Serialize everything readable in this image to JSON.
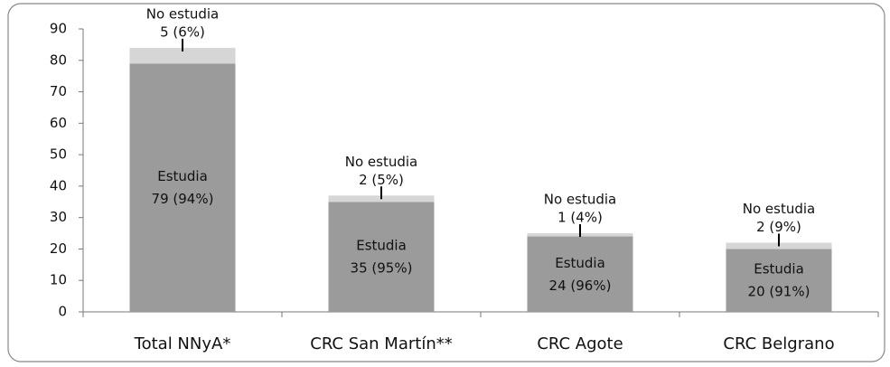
{
  "chart_data": {
    "type": "bar",
    "stacked": true,
    "categories": [
      "Total NNyA*",
      "CRC San Martín**",
      "CRC Agote",
      "CRC Belgrano"
    ],
    "series": [
      {
        "name": "Estudia",
        "color": "#9b9b9b",
        "values": [
          79,
          35,
          24,
          20
        ],
        "value_labels": [
          "79 (94%)",
          "35 (95%)",
          "24 (96%)",
          "20 (91%)"
        ]
      },
      {
        "name": "No estudia",
        "color": "#d6d6d6",
        "values": [
          5,
          2,
          1,
          2
        ],
        "value_labels": [
          "5 (6%)",
          "2 (5%)",
          "1 (4%)",
          "2 (9%)"
        ]
      }
    ],
    "ylim": [
      0,
      90
    ],
    "yticks": [
      0,
      10,
      20,
      30,
      40,
      50,
      60,
      70,
      80,
      90
    ],
    "grid": false
  }
}
